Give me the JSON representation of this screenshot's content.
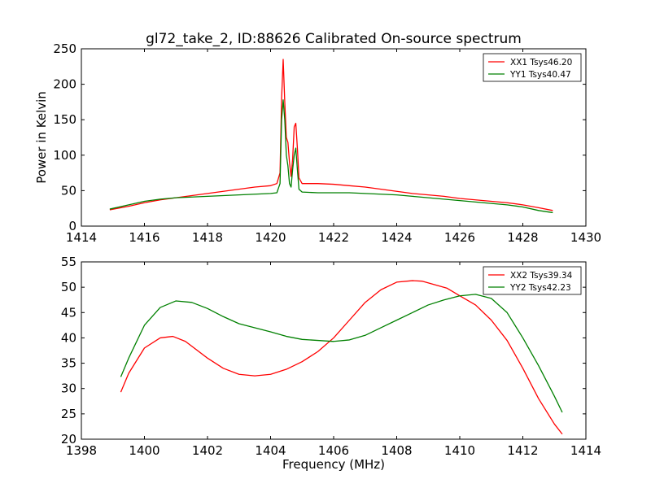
{
  "figure": {
    "title": "gl72_take_2, ID:88626 Calibrated On-source spectrum"
  },
  "chart_data": [
    {
      "type": "line",
      "title": "gl72_take_2, ID:88626 Calibrated On-source spectrum",
      "xlabel": "",
      "ylabel": "Power in Kelvin",
      "xlim": [
        1414,
        1430
      ],
      "ylim": [
        0,
        250
      ],
      "xticks": [
        1414,
        1416,
        1418,
        1420,
        1422,
        1424,
        1426,
        1428,
        1430
      ],
      "yticks": [
        0,
        50,
        100,
        150,
        200,
        250
      ],
      "grid": false,
      "legend_position": "top-right",
      "series": [
        {
          "name": "XX1 Tsys46.20",
          "color": "#ff0000",
          "x": [
            1414.9,
            1415.5,
            1416,
            1416.5,
            1417,
            1417.5,
            1418,
            1418.5,
            1419,
            1419.5,
            1420,
            1420.2,
            1420.3,
            1420.35,
            1420.4,
            1420.45,
            1420.5,
            1420.55,
            1420.6,
            1420.65,
            1420.7,
            1420.75,
            1420.8,
            1420.85,
            1420.9,
            1421,
            1421.5,
            1422,
            1422.5,
            1423,
            1423.5,
            1424,
            1424.5,
            1425,
            1425.5,
            1426,
            1426.5,
            1427,
            1427.5,
            1428,
            1428.5,
            1428.95
          ],
          "y": [
            23,
            28,
            33,
            37,
            40,
            43,
            46,
            49,
            52,
            55,
            57,
            60,
            75,
            180,
            235,
            175,
            125,
            118,
            90,
            70,
            95,
            140,
            145,
            110,
            68,
            60,
            60,
            59,
            57,
            55,
            52,
            49,
            46,
            44,
            42,
            39,
            37,
            35,
            33,
            30,
            26,
            22
          ]
        },
        {
          "name": "YY1 Tsys40.47",
          "color": "#008000",
          "x": [
            1414.9,
            1415.5,
            1416,
            1416.5,
            1417,
            1417.5,
            1418,
            1418.5,
            1419,
            1419.5,
            1420,
            1420.2,
            1420.3,
            1420.35,
            1420.4,
            1420.45,
            1420.5,
            1420.55,
            1420.6,
            1420.65,
            1420.7,
            1420.75,
            1420.8,
            1420.85,
            1420.9,
            1421,
            1421.5,
            1422,
            1422.5,
            1423,
            1423.5,
            1424,
            1424.5,
            1425,
            1425.5,
            1426,
            1426.5,
            1427,
            1427.5,
            1428,
            1428.5,
            1428.95
          ],
          "y": [
            24,
            30,
            35,
            38,
            40,
            41,
            42,
            43,
            44,
            45,
            46,
            47,
            60,
            150,
            178,
            150,
            100,
            85,
            60,
            55,
            80,
            100,
            110,
            80,
            52,
            48,
            47,
            47,
            47,
            46,
            45,
            44,
            42,
            40,
            38,
            36,
            34,
            32,
            30,
            27,
            22,
            19
          ]
        }
      ]
    },
    {
      "type": "line",
      "title": "",
      "xlabel": "Frequency (MHz)",
      "ylabel": "",
      "xlim": [
        1398,
        1414
      ],
      "ylim": [
        20,
        55
      ],
      "xticks": [
        1398,
        1400,
        1402,
        1404,
        1406,
        1408,
        1410,
        1412,
        1414
      ],
      "yticks": [
        20,
        25,
        30,
        35,
        40,
        45,
        50,
        55
      ],
      "grid": false,
      "legend_position": "top-right",
      "series": [
        {
          "name": "XX2 Tsys39.34",
          "color": "#ff0000",
          "x": [
            1399.25,
            1399.5,
            1400,
            1400.5,
            1400.9,
            1401.3,
            1402,
            1402.5,
            1403,
            1403.5,
            1404,
            1404.5,
            1405,
            1405.5,
            1406,
            1406.5,
            1407,
            1407.5,
            1408,
            1408.5,
            1408.8,
            1409.2,
            1409.6,
            1410,
            1410.5,
            1411,
            1411.5,
            1412,
            1412.5,
            1413,
            1413.25
          ],
          "y": [
            29.3,
            33,
            38,
            40,
            40.3,
            39.3,
            36,
            34,
            32.8,
            32.5,
            32.8,
            33.8,
            35.3,
            37.3,
            40,
            43.5,
            47,
            49.5,
            51,
            51.3,
            51.2,
            50.5,
            49.8,
            48.3,
            46.5,
            43.5,
            39.5,
            34,
            28,
            23,
            21
          ]
        },
        {
          "name": "YY2 Tsys42.23",
          "color": "#008000",
          "x": [
            1399.25,
            1399.5,
            1400,
            1400.5,
            1401,
            1401.5,
            1402,
            1402.5,
            1403,
            1403.5,
            1404,
            1404.5,
            1405,
            1405.5,
            1406,
            1406.5,
            1407,
            1407.5,
            1408,
            1408.5,
            1409,
            1409.5,
            1410,
            1410.5,
            1411,
            1411.5,
            1412,
            1412.5,
            1413,
            1413.25
          ],
          "y": [
            32.3,
            36,
            42.5,
            46,
            47.3,
            47,
            45.8,
            44.2,
            42.8,
            42,
            41.2,
            40.3,
            39.7,
            39.5,
            39.3,
            39.6,
            40.5,
            42,
            43.5,
            45,
            46.5,
            47.5,
            48.3,
            48.6,
            47.8,
            45,
            40,
            34.5,
            28.5,
            25.3
          ]
        }
      ]
    }
  ]
}
